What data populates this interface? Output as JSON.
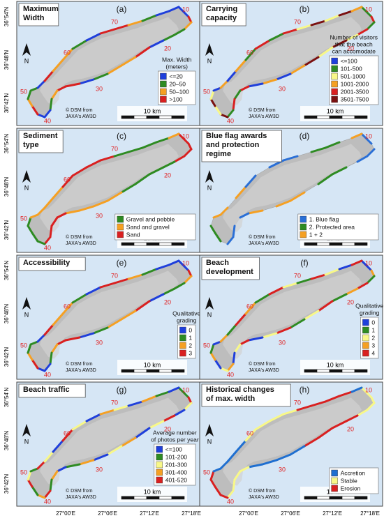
{
  "lat_labels": [
    "36°54'N",
    "36°48'N",
    "36°42'N"
  ],
  "lon_labels": [
    "27°00'E",
    "27°06'E",
    "27°12'E",
    "27°18'E"
  ],
  "km_markers": [
    "10",
    "20",
    "30",
    "40",
    "50",
    "60",
    "70"
  ],
  "north": "N",
  "credit": [
    "© DSM from",
    "JAXA's AW3D"
  ],
  "scale_label": "10 km",
  "panels": [
    {
      "letter": "(a)",
      "title": [
        "Maximum",
        "Width"
      ],
      "legend_title": [
        "Max. Width",
        "(meters)"
      ],
      "legend": [
        {
          "label": "<=20",
          "color": "#1f3fdb"
        },
        {
          "label": "20–50",
          "color": "#2e8b22"
        },
        {
          "label": "50–100",
          "color": "#f5a023"
        },
        {
          "label": ">100",
          "color": "#d92020"
        }
      ]
    },
    {
      "letter": "(b)",
      "title": [
        "Carrying",
        "capacity"
      ],
      "legend_title": [
        "Number of visitors",
        "that the beach",
        "can accomodate"
      ],
      "legend": [
        {
          "label": "<=100",
          "color": "#1f3fdb"
        },
        {
          "label": "101-500",
          "color": "#2e8b22"
        },
        {
          "label": "501-1000",
          "color": "#f8f888"
        },
        {
          "label": "1001-2000",
          "color": "#f5a023"
        },
        {
          "label": "2001-3500",
          "color": "#d92020"
        },
        {
          "label": "3501-7500",
          "color": "#7a1010"
        }
      ]
    },
    {
      "letter": "(c)",
      "title": [
        "Sediment",
        "type"
      ],
      "legend_title": [],
      "legend": [
        {
          "label": "Gravel and pebble",
          "color": "#2e8b22"
        },
        {
          "label": "Sand and gravel",
          "color": "#f5a023"
        },
        {
          "label": "Sand",
          "color": "#d92020"
        }
      ]
    },
    {
      "letter": "(d)",
      "title": [
        "Blue flag awards",
        "and protection",
        "regime"
      ],
      "legend_title": [],
      "legend": [
        {
          "label": "1. Blue flag",
          "color": "#2a6fd6"
        },
        {
          "label": "2. Protected area",
          "color": "#2e8b22"
        },
        {
          "label": "1 + 2",
          "color": "#f5a023"
        }
      ]
    },
    {
      "letter": "(e)",
      "title": [
        "Accessibility"
      ],
      "legend_title": [
        "Qualitative",
        "grading"
      ],
      "legend": [
        {
          "label": "0",
          "color": "#1f3fdb"
        },
        {
          "label": "1",
          "color": "#2e8b22"
        },
        {
          "label": "2",
          "color": "#f5a023"
        },
        {
          "label": "3",
          "color": "#d92020"
        }
      ]
    },
    {
      "letter": "(f)",
      "title": [
        "Beach",
        "development"
      ],
      "legend_title": [
        "Qualitative",
        "grading"
      ],
      "legend": [
        {
          "label": "0",
          "color": "#1f3fdb"
        },
        {
          "label": "1",
          "color": "#2e8b22"
        },
        {
          "label": "2",
          "color": "#f8f888"
        },
        {
          "label": "3",
          "color": "#f5a023"
        },
        {
          "label": "4",
          "color": "#d92020"
        }
      ]
    },
    {
      "letter": "(g)",
      "title": [
        "Beach traffic"
      ],
      "legend_title": [
        "Average number",
        "of photos per year"
      ],
      "legend": [
        {
          "label": "<=100",
          "color": "#1f3fdb"
        },
        {
          "label": "101-200",
          "color": "#2e8b22"
        },
        {
          "label": "201-300",
          "color": "#f8f888"
        },
        {
          "label": "301-400",
          "color": "#f5a023"
        },
        {
          "label": "401-520",
          "color": "#d92020"
        }
      ]
    },
    {
      "letter": "(h)",
      "title": [
        "Historical changes",
        "of max. width"
      ],
      "legend_title": [],
      "legend": [
        {
          "label": "Accretion",
          "color": "#1f6fd0"
        },
        {
          "label": "Stable",
          "color": "#f8f888"
        },
        {
          "label": "Erosion",
          "color": "#d92020"
        }
      ]
    }
  ]
}
